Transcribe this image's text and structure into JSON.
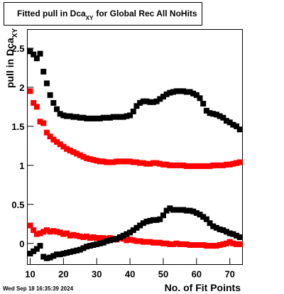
{
  "chart_data": {
    "type": "scatter",
    "title": "Fitted pull in Dca",
    "title_subscript": "XY",
    "title_suffix": "for Global Rec All NoHits",
    "y_label": "pull in Dca",
    "y_label_subscript": "XY",
    "x_label": "No. of Fit Points",
    "timestamp": "Wed Sep 18 16:35:39 2024",
    "x": [
      10,
      11,
      12,
      13,
      14,
      15,
      16,
      17,
      18,
      19,
      20,
      21,
      22,
      23,
      24,
      25,
      26,
      27,
      28,
      29,
      30,
      31,
      32,
      33,
      34,
      35,
      36,
      37,
      38,
      39,
      40,
      41,
      42,
      43,
      44,
      45,
      46,
      47,
      48,
      49,
      50,
      51,
      52,
      53,
      54,
      55,
      56,
      57,
      58,
      59,
      60,
      61,
      62,
      63,
      64,
      65,
      66,
      67,
      68,
      69,
      70,
      71,
      72,
      73
    ],
    "series": [
      {
        "color": "#000000",
        "values": [
          2.46,
          2.42,
          2.37,
          2.43,
          2.2,
          2.05,
          1.9,
          1.8,
          1.72,
          1.66,
          1.64,
          1.63,
          1.63,
          1.62,
          1.62,
          1.61,
          1.61,
          1.6,
          1.6,
          1.6,
          1.6,
          1.6,
          1.61,
          1.61,
          1.61,
          1.62,
          1.62,
          1.62,
          1.62,
          1.63,
          1.64,
          1.69,
          1.76,
          1.8,
          1.82,
          1.82,
          1.81,
          1.81,
          1.82,
          1.85,
          1.88,
          1.91,
          1.93,
          1.94,
          1.95,
          1.95,
          1.95,
          1.94,
          1.94,
          1.92,
          1.9,
          1.86,
          1.79,
          1.7,
          1.67,
          1.66,
          1.65,
          1.63,
          1.61,
          1.57,
          1.55,
          1.52,
          1.5,
          1.46
        ]
      },
      {
        "color": "#ff0000",
        "values": [
          1.95,
          1.8,
          1.75,
          1.56,
          1.54,
          1.42,
          1.37,
          1.33,
          1.3,
          1.27,
          1.24,
          1.21,
          1.19,
          1.17,
          1.15,
          1.13,
          1.11,
          1.09,
          1.08,
          1.07,
          1.06,
          1.05,
          1.05,
          1.04,
          1.04,
          1.04,
          1.05,
          1.05,
          1.05,
          1.05,
          1.05,
          1.04,
          1.04,
          1.03,
          1.03,
          1.02,
          1.02,
          1.03,
          1.03,
          1.02,
          1.01,
          1.01,
          1.0,
          1.0,
          1.0,
          1.0,
          1.0,
          0.99,
          0.99,
          0.99,
          0.99,
          0.99,
          0.99,
          0.99,
          0.99,
          1.0,
          1.0,
          1.0,
          1.0,
          1.01,
          1.01,
          1.02,
          1.03,
          1.04
        ]
      },
      {
        "color": "#ff0000",
        "values": [
          0.23,
          0.17,
          0.12,
          0.13,
          0.15,
          0.17,
          0.15,
          0.16,
          0.15,
          0.14,
          0.12,
          0.13,
          0.1,
          0.11,
          0.1,
          0.09,
          0.08,
          0.09,
          0.07,
          0.08,
          0.07,
          0.07,
          0.07,
          0.06,
          0.07,
          0.06,
          0.05,
          0.07,
          0.06,
          0.04,
          0.05,
          0.04,
          0.03,
          0.03,
          0.02,
          0.02,
          0.02,
          0.01,
          0.01,
          0.01,
          0.0,
          0.0,
          -0.01,
          -0.01,
          0.0,
          -0.01,
          -0.01,
          -0.01,
          -0.02,
          -0.02,
          -0.02,
          -0.02,
          -0.02,
          -0.03,
          -0.03,
          -0.03,
          -0.03,
          -0.02,
          -0.01,
          0.0,
          0.02,
          0.0,
          -0.01,
          -0.01
        ]
      },
      {
        "color": "#000000",
        "values": [
          -0.13,
          -0.1,
          -0.07,
          -0.03,
          -0.17,
          -0.19,
          -0.18,
          -0.16,
          -0.14,
          -0.14,
          -0.13,
          -0.12,
          -0.11,
          -0.1,
          -0.09,
          -0.08,
          -0.06,
          -0.04,
          -0.03,
          -0.02,
          -0.01,
          0.0,
          0.01,
          0.03,
          0.04,
          0.05,
          0.06,
          0.08,
          0.1,
          0.12,
          0.14,
          0.17,
          0.2,
          0.23,
          0.26,
          0.28,
          0.29,
          0.3,
          0.3,
          0.31,
          0.36,
          0.42,
          0.45,
          0.43,
          0.43,
          0.43,
          0.43,
          0.42,
          0.42,
          0.41,
          0.39,
          0.37,
          0.34,
          0.31,
          0.26,
          0.22,
          0.2,
          0.18,
          0.17,
          0.15,
          0.13,
          0.12,
          0.1,
          0.08
        ]
      }
    ],
    "xlim": [
      9.15,
      73.8
    ],
    "xticks": [
      10,
      20,
      30,
      40,
      50,
      60,
      70
    ],
    "ylim": [
      -0.27,
      2.74
    ],
    "yticks": [
      0,
      0.5,
      1,
      1.5,
      2,
      2.5
    ]
  }
}
